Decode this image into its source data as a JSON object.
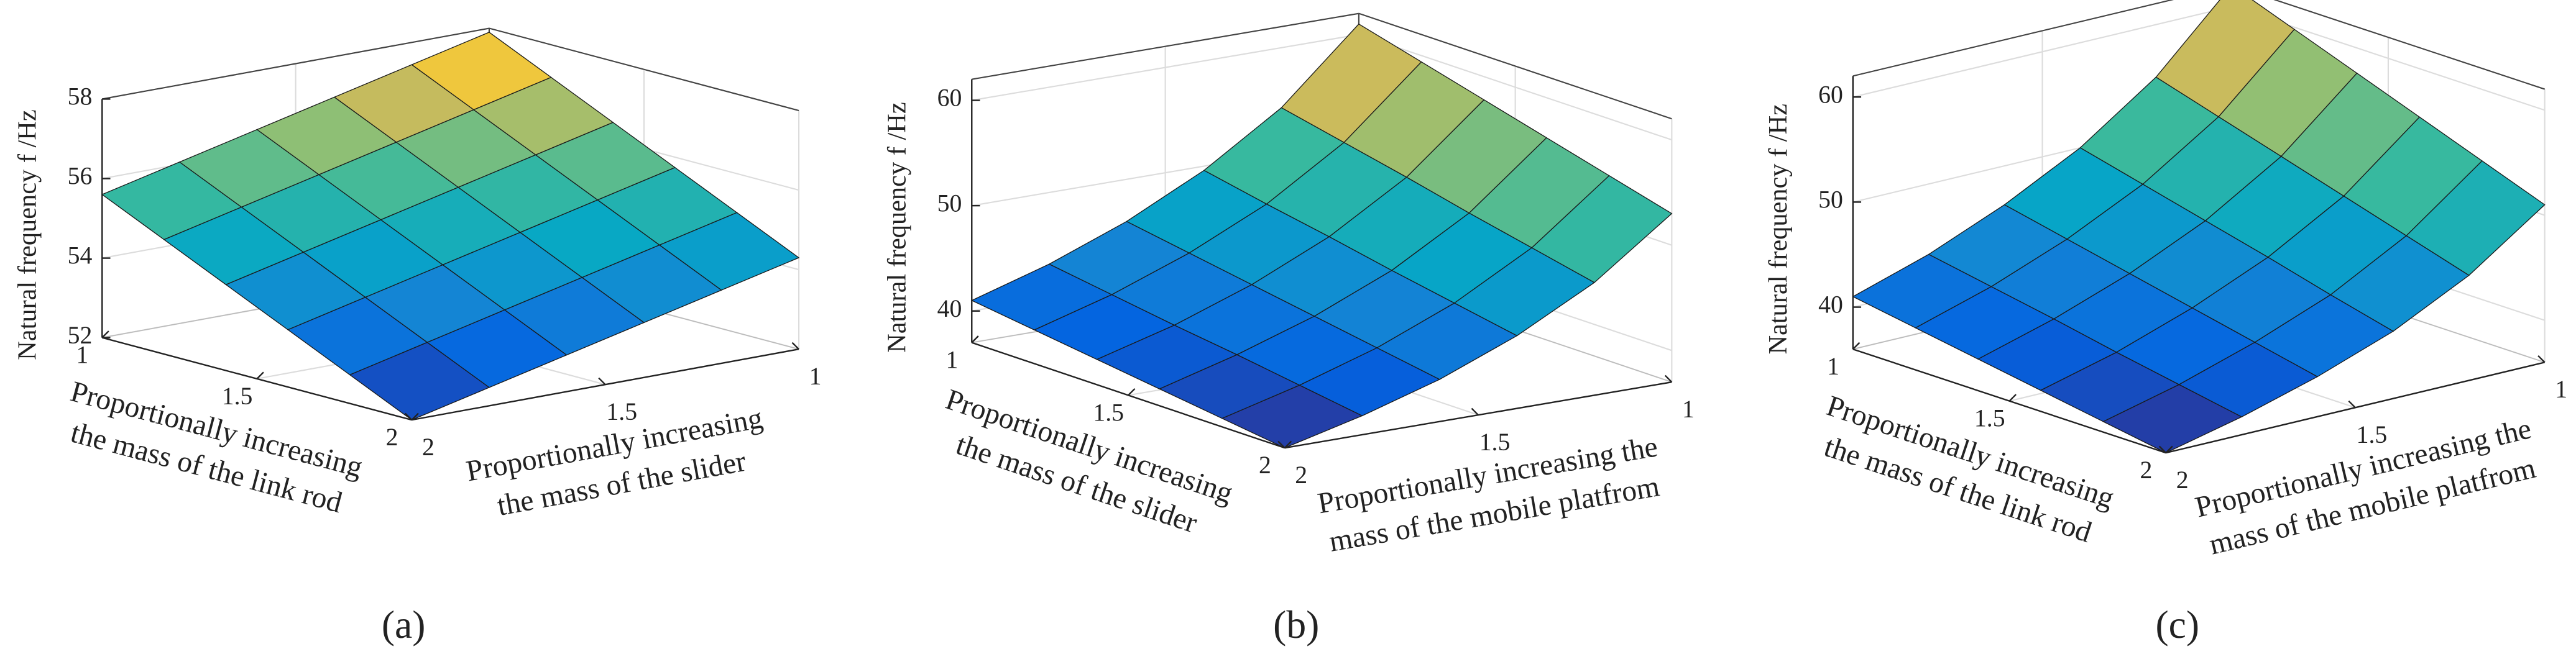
{
  "chart_data": [
    {
      "type": "surface",
      "panel_label": "(a)",
      "zlabel": "Natural frequency f /Hz",
      "xlabel": [
        "Proportionally increasing",
        "the mass of the link rod"
      ],
      "ylabel": [
        "Proportionally increasing",
        "the mass of the slider"
      ],
      "x": [
        1,
        1.2,
        1.4,
        1.6,
        1.8,
        2
      ],
      "y": [
        1,
        1.2,
        1.4,
        1.6,
        1.8,
        2
      ],
      "z": [
        [
          57.9,
          57.44,
          56.98,
          56.52,
          56.06,
          55.6
        ],
        [
          57.18,
          56.72,
          56.26,
          55.8,
          55.34,
          54.88
        ],
        [
          56.46,
          56.0,
          55.54,
          55.08,
          54.62,
          54.16
        ],
        [
          55.74,
          55.28,
          54.82,
          54.36,
          53.9,
          53.44
        ],
        [
          55.02,
          54.56,
          54.1,
          53.64,
          53.18,
          52.72
        ],
        [
          54.3,
          53.84,
          53.38,
          52.92,
          52.46,
          52.0
        ]
      ],
      "xlim": [
        1,
        2
      ],
      "ylim": [
        1,
        2
      ],
      "zlim": [
        52,
        58
      ],
      "xticks": [
        1,
        1.5,
        2
      ],
      "yticks": [
        1,
        1.5,
        2
      ],
      "zticks": [
        52,
        54,
        56,
        58
      ],
      "colormap": "parula",
      "grid": true
    },
    {
      "type": "surface",
      "panel_label": "(b)",
      "zlabel": "Natural frequency f /Hz",
      "xlabel": [
        "Proportionally increasing",
        "the mass of the slider"
      ],
      "ylabel": [
        "Proportionally increasing the",
        "mass of the mobile platfrom"
      ],
      "x": [
        1,
        1.2,
        1.4,
        1.6,
        1.8,
        2
      ],
      "y": [
        1,
        1.2,
        1.4,
        1.6,
        1.8,
        2
      ],
      "z": [
        [
          61.0,
          54.3,
          49.6,
          46.0,
          43.2,
          41.0
        ],
        [
          59.4,
          53.0,
          48.4,
          45.0,
          42.3,
          40.2
        ],
        [
          57.8,
          51.7,
          47.3,
          44.0,
          41.4,
          39.4
        ],
        [
          56.2,
          50.3,
          46.1,
          43.0,
          40.6,
          38.6
        ],
        [
          54.6,
          49.0,
          45.0,
          42.0,
          39.7,
          37.8
        ],
        [
          53.0,
          47.7,
          43.9,
          41.0,
          38.8,
          37.0
        ]
      ],
      "xlim": [
        1,
        2
      ],
      "ylim": [
        1,
        2
      ],
      "zlim": [
        37,
        62
      ],
      "xticks": [
        1,
        1.5,
        2
      ],
      "yticks": [
        1,
        1.5,
        2
      ],
      "zticks": [
        40,
        50,
        60
      ],
      "colormap": "parula",
      "grid": true
    },
    {
      "type": "surface",
      "panel_label": "(c)",
      "zlabel": "Natural frequency f /Hz",
      "xlabel": [
        "Proportionally increasing",
        "the mass of the link rod"
      ],
      "ylabel": [
        "Proportionally increasing the",
        "mass of the mobile platfrom"
      ],
      "x": [
        1,
        1.2,
        1.4,
        1.6,
        1.8,
        2
      ],
      "y": [
        1,
        1.2,
        1.4,
        1.6,
        1.8,
        2
      ],
      "z": [
        [
          62.0,
          55.0,
          50.0,
          46.3,
          43.3,
          41.0
        ],
        [
          59.8,
          53.2,
          48.5,
          45.0,
          42.2,
          40.0
        ],
        [
          57.6,
          51.4,
          47.0,
          43.7,
          41.1,
          39.0
        ],
        [
          55.4,
          49.6,
          45.5,
          42.4,
          39.9,
          38.0
        ],
        [
          53.2,
          47.8,
          43.9,
          41.1,
          38.8,
          37.0
        ],
        [
          51.0,
          46.0,
          42.4,
          39.8,
          37.7,
          36.0
        ]
      ],
      "xlim": [
        1,
        2
      ],
      "ylim": [
        1,
        2
      ],
      "zlim": [
        36,
        62
      ],
      "xticks": [
        1,
        1.5,
        2
      ],
      "yticks": [
        1,
        1.5,
        2
      ],
      "zticks": [
        40,
        50,
        60
      ],
      "colormap": "parula",
      "grid": true
    }
  ]
}
